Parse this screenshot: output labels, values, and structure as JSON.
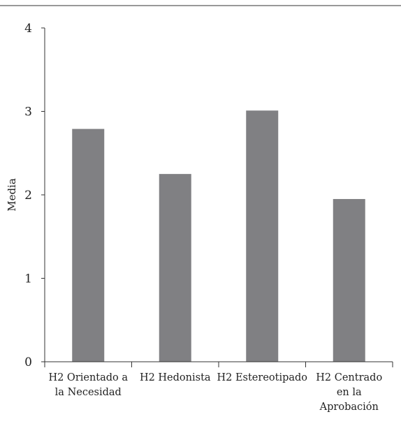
{
  "chart_data": {
    "type": "bar",
    "title": "",
    "xlabel": "",
    "ylabel": "Media",
    "ylim": [
      0,
      4
    ],
    "yticks": [
      "0",
      "1",
      "2",
      "3",
      "4"
    ],
    "grid": false,
    "categories": [
      "H2 Orientado a la Necesidad",
      "H2 Hedonista",
      "H2 Estereotipado",
      "H2 Centrado en la Aprobación"
    ],
    "category_lines": [
      [
        "H2 Orientado a",
        "la Necesidad"
      ],
      [
        "H2 Hedonista"
      ],
      [
        "H2 Estereotipado"
      ],
      [
        "H2 Centrado",
        "en la",
        "Aprobación"
      ]
    ],
    "values": [
      2.79,
      2.25,
      3.01,
      1.95
    ],
    "bar_color": "#808083"
  }
}
